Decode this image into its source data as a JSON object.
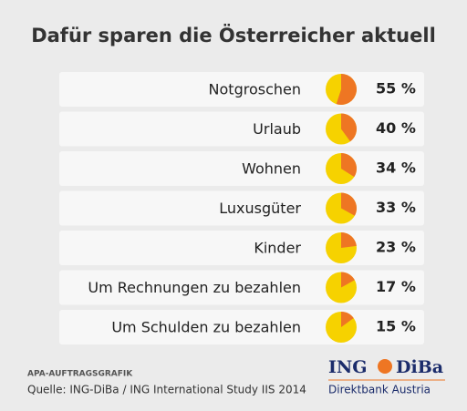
{
  "chart_data": {
    "type": "pie",
    "title": "Dafür sparen die Österreicher aktuell",
    "categories": [
      "Notgroschen",
      "Urlaub",
      "Wohnen",
      "Luxusgüter",
      "Kinder",
      "Um Rechnungen zu bezahlen",
      "Um Schulden zu bezahlen"
    ],
    "values": [
      55,
      40,
      34,
      33,
      23,
      17,
      15
    ],
    "value_labels": [
      "55 %",
      "40 %",
      "34 %",
      "33 %",
      "23 %",
      "17 %",
      "15 %"
    ],
    "color": "#ee7623",
    "rest_color": "#f6d200"
  },
  "footer": {
    "credit": "APA-AUFTRAGSGRAFIK",
    "source": "Quelle: ING-DiBa / ING International Study IIS 2014",
    "logo": {
      "name": "ING",
      "name2": "DiBa",
      "tagline": "Direktbank Austria"
    }
  }
}
